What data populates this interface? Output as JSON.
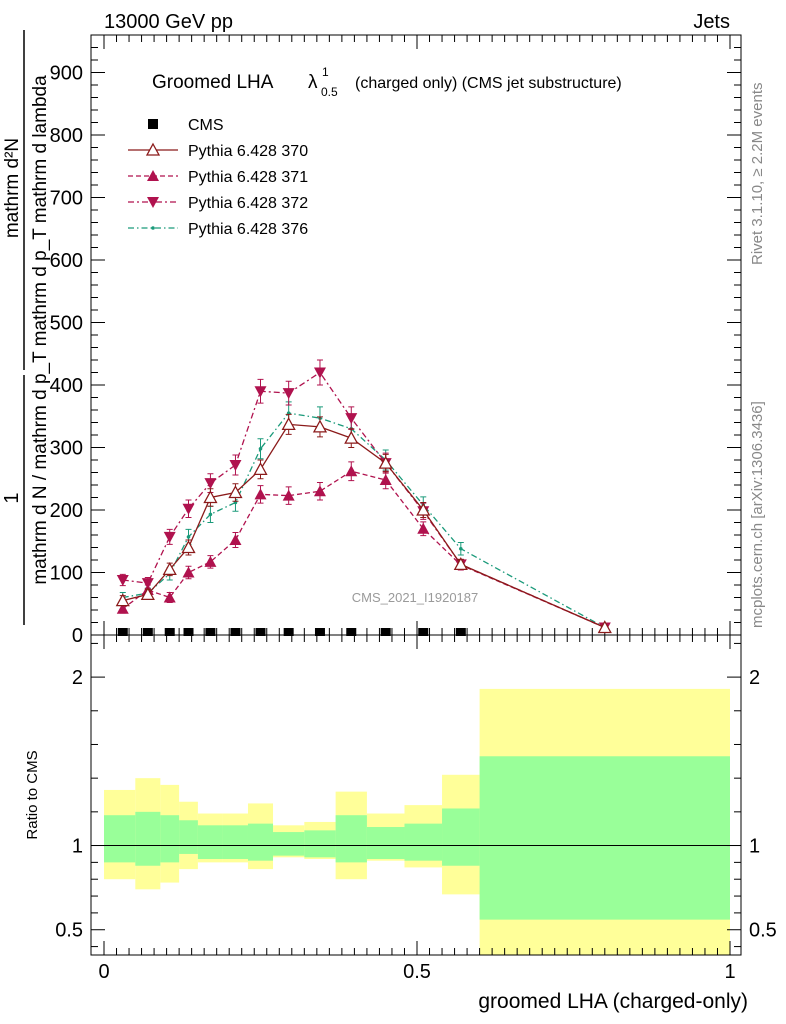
{
  "header": {
    "left": "13000 GeV pp",
    "right": "Jets"
  },
  "side_labels": {
    "top": "Rivet 3.1.10, ≥ 2.2M events",
    "bottom": "mcplots.cern.ch [arXiv:1306.3436]"
  },
  "watermark": "CMS_2021_I1920187",
  "colors": {
    "p370": "#8b1a1a",
    "p371": "#b0124e",
    "p372": "#b0124e",
    "p376": "#1a9a7a",
    "band_inner": "#99ff99",
    "band_outer": "#ffff99"
  },
  "chart_data": [
    {
      "type": "line",
      "title_main": "Groomed LHA",
      "title_lambda": "λ",
      "title_sup": "1",
      "title_sub": "0.5",
      "title_rest": "(charged only) (CMS jet substructure)",
      "ylabel_one": "1",
      "ylabel_den": "mathrm d N / mathrm d p_T mathrm d p_T mathrm d lambda",
      "ylabel_num": "mathrm d²N",
      "xlim": [
        0,
        1
      ],
      "ylim": [
        0,
        960
      ],
      "y_ticks": [
        0,
        100,
        200,
        300,
        400,
        500,
        600,
        700,
        800,
        900
      ],
      "bins": [
        [
          0.0,
          0.05
        ],
        [
          0.05,
          0.09
        ],
        [
          0.09,
          0.12
        ],
        [
          0.12,
          0.15
        ],
        [
          0.15,
          0.19
        ],
        [
          0.19,
          0.23
        ],
        [
          0.23,
          0.27
        ],
        [
          0.27,
          0.32
        ],
        [
          0.32,
          0.37
        ],
        [
          0.37,
          0.42
        ],
        [
          0.42,
          0.48
        ],
        [
          0.48,
          0.54
        ],
        [
          0.54,
          0.6
        ],
        [
          0.6,
          1.0
        ]
      ],
      "series": [
        {
          "name": "CMS",
          "x": [
            0.03,
            0.07,
            0.105,
            0.135,
            0.17,
            0.21,
            0.25,
            0.295,
            0.345,
            0.395,
            0.45,
            0.51,
            0.57,
            0.8
          ],
          "y": [
            0,
            0,
            0,
            0,
            0,
            0,
            0,
            0,
            0,
            0,
            0,
            0,
            0,
            0
          ]
        },
        {
          "name": "Pythia 6.428 370",
          "x": [
            0.03,
            0.07,
            0.105,
            0.135,
            0.17,
            0.21,
            0.25,
            0.295,
            0.345,
            0.395,
            0.45,
            0.51,
            0.57,
            0.8
          ],
          "y": [
            55,
            65,
            105,
            140,
            220,
            228,
            265,
            337,
            333,
            315,
            275,
            200,
            113,
            12
          ],
          "err": [
            8,
            8,
            10,
            12,
            14,
            14,
            15,
            16,
            16,
            15,
            14,
            12,
            8,
            3
          ]
        },
        {
          "name": "Pythia 6.428 371",
          "x": [
            0.03,
            0.07,
            0.105,
            0.135,
            0.17,
            0.21,
            0.25,
            0.295,
            0.345,
            0.395,
            0.45,
            0.51,
            0.57,
            0.8
          ],
          "y": [
            42,
            72,
            60,
            100,
            117,
            152,
            225,
            223,
            230,
            262,
            248,
            170,
            112,
            12
          ],
          "err": [
            7,
            8,
            8,
            10,
            10,
            12,
            14,
            14,
            14,
            15,
            14,
            11,
            8,
            3
          ]
        },
        {
          "name": "Pythia 6.428 372",
          "x": [
            0.03,
            0.07,
            0.105,
            0.135,
            0.17,
            0.21,
            0.25,
            0.295,
            0.345,
            0.395,
            0.45,
            0.51,
            0.57,
            0.8
          ],
          "y": [
            88,
            83,
            157,
            202,
            243,
            272,
            390,
            387,
            420,
            347,
            275,
            198,
            113,
            12
          ],
          "err": [
            9,
            9,
            12,
            14,
            15,
            16,
            19,
            19,
            20,
            18,
            16,
            13,
            8,
            3
          ]
        },
        {
          "name": "Pythia 6.428 376",
          "x": [
            0.03,
            0.07,
            0.105,
            0.135,
            0.17,
            0.21,
            0.25,
            0.295,
            0.345,
            0.395,
            0.45,
            0.51,
            0.57,
            0.8
          ],
          "y": [
            60,
            67,
            98,
            157,
            193,
            212,
            298,
            355,
            347,
            330,
            280,
            208,
            138,
            12
          ],
          "err": [
            8,
            8,
            10,
            12,
            13,
            14,
            16,
            18,
            18,
            17,
            16,
            13,
            10,
            3
          ]
        }
      ]
    },
    {
      "type": "area",
      "ylabel": "Ratio to CMS",
      "xlabel": "groomed LHA (charged-only)",
      "xlim": [
        0,
        1
      ],
      "ylim": [
        0.35,
        2.25
      ],
      "y_ticks": [
        0.5,
        1,
        2
      ],
      "y_tick_labels": [
        "0.5",
        "1",
        "2"
      ],
      "x_ticks": [
        0,
        0.5,
        1
      ],
      "x_tick_labels": [
        "0",
        "0.5",
        "1"
      ],
      "bins": [
        [
          0.0,
          0.05
        ],
        [
          0.05,
          0.09
        ],
        [
          0.09,
          0.12
        ],
        [
          0.12,
          0.15
        ],
        [
          0.15,
          0.19
        ],
        [
          0.19,
          0.23
        ],
        [
          0.23,
          0.27
        ],
        [
          0.27,
          0.32
        ],
        [
          0.32,
          0.37
        ],
        [
          0.37,
          0.42
        ],
        [
          0.42,
          0.48
        ],
        [
          0.48,
          0.54
        ],
        [
          0.54,
          0.6
        ],
        [
          0.6,
          1.0
        ]
      ],
      "band_inner_low": [
        0.9,
        0.88,
        0.9,
        0.95,
        0.92,
        0.92,
        0.91,
        0.94,
        0.93,
        0.9,
        0.92,
        0.91,
        0.88,
        0.56
      ],
      "band_inner_high": [
        1.18,
        1.2,
        1.18,
        1.15,
        1.12,
        1.12,
        1.13,
        1.08,
        1.09,
        1.18,
        1.11,
        1.13,
        1.22,
        1.53
      ],
      "band_outer_low": [
        0.8,
        0.74,
        0.78,
        0.86,
        0.9,
        0.9,
        0.86,
        0.93,
        0.92,
        0.8,
        0.91,
        0.87,
        0.71,
        0.35
      ],
      "band_outer_high": [
        1.33,
        1.4,
        1.36,
        1.26,
        1.19,
        1.19,
        1.25,
        1.12,
        1.14,
        1.32,
        1.19,
        1.24,
        1.42,
        1.93
      ]
    }
  ]
}
